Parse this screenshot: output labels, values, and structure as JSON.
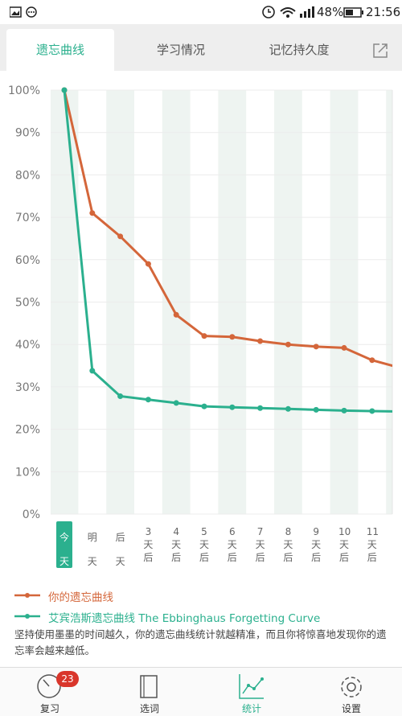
{
  "status_bar": {
    "battery": "48%",
    "time": "21:56"
  },
  "tabs": [
    "遗忘曲线",
    "学习情况",
    "记忆持久度"
  ],
  "chart_data": {
    "type": "line",
    "categories": [
      "今天",
      "明天",
      "后天",
      "3天后",
      "4天后",
      "5天后",
      "6天后",
      "7天后",
      "8天后",
      "9天后",
      "10天后",
      "11天后",
      null
    ],
    "series": [
      {
        "name": "你的遗忘曲线",
        "color": "#d4663a",
        "values": [
          100,
          71,
          65.5,
          59,
          47,
          42,
          41.8,
          40.8,
          40,
          39.5,
          39.2,
          36.3,
          34.5
        ]
      },
      {
        "name": "艾宾浩斯遗忘曲线 The Ebbinghaus Forgetting Curve",
        "color": "#2bb08e",
        "values": [
          100,
          33.8,
          27.8,
          27,
          26.2,
          25.4,
          25.2,
          25,
          24.8,
          24.6,
          24.4,
          24.3,
          24.2
        ]
      }
    ],
    "ylim": [
      0,
      100
    ],
    "yticks": [
      {
        "value": 0,
        "label": "0%"
      },
      {
        "value": 10,
        "label": "10%"
      },
      {
        "value": 20,
        "label": "20%"
      },
      {
        "value": 30,
        "label": "30%"
      },
      {
        "value": 40,
        "label": "40%"
      },
      {
        "value": 50,
        "label": "50%"
      },
      {
        "value": 60,
        "label": "60%"
      },
      {
        "value": 70,
        "label": "70%"
      },
      {
        "value": 80,
        "label": "80%"
      },
      {
        "value": 90,
        "label": "90%"
      },
      {
        "value": 100,
        "label": "100%"
      }
    ],
    "grid": true
  },
  "note": "坚持使用墨墨的时间越久，你的遗忘曲线统计就越精准，而且你将惊喜地发现你的遗忘率会越来越低。",
  "nav": {
    "items": [
      "复习",
      "选词",
      "统计",
      "设置"
    ],
    "badge": 23
  }
}
